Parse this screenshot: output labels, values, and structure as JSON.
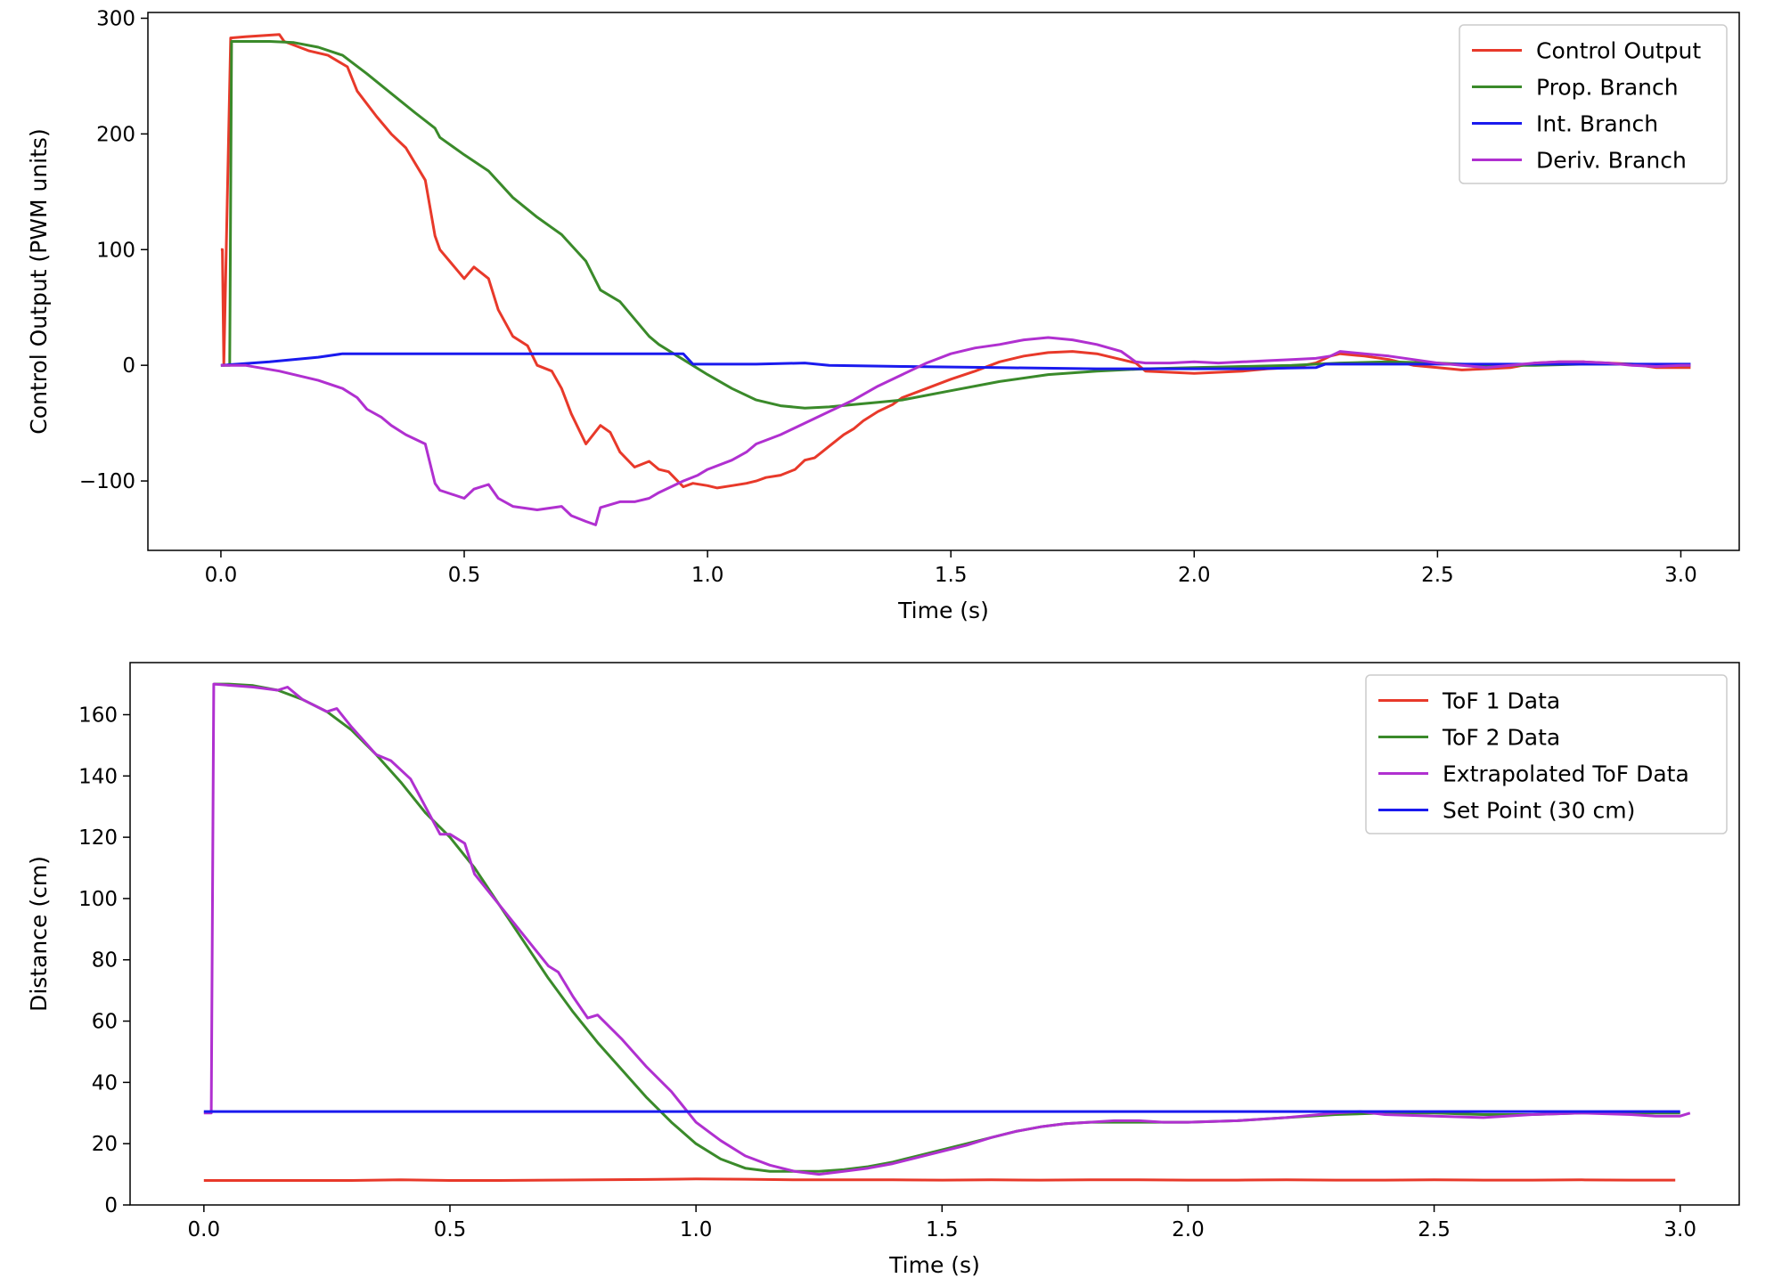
{
  "chart_data": [
    {
      "type": "line",
      "xlabel": "Time (s)",
      "ylabel": "Control Output (PWM units)",
      "xlim": [
        -0.15,
        3.12
      ],
      "ylim": [
        -160,
        305
      ],
      "xticks": [
        0.0,
        0.5,
        1.0,
        1.5,
        2.0,
        2.5,
        3.0
      ],
      "xtick_labels": [
        "0.0",
        "0.5",
        "1.0",
        "1.5",
        "2.0",
        "2.5",
        "3.0"
      ],
      "yticks": [
        -100,
        0,
        100,
        200,
        300
      ],
      "ytick_labels": [
        "−100",
        "0",
        "100",
        "200",
        "300"
      ],
      "grid": false,
      "legend_position": "top-right",
      "series": [
        {
          "name": "Control Output",
          "color": "#e8392a",
          "x": [
            0.0,
            0.003,
            0.006,
            0.02,
            0.05,
            0.12,
            0.13,
            0.18,
            0.22,
            0.26,
            0.28,
            0.32,
            0.35,
            0.38,
            0.42,
            0.44,
            0.45,
            0.5,
            0.52,
            0.55,
            0.57,
            0.6,
            0.63,
            0.65,
            0.68,
            0.7,
            0.72,
            0.75,
            0.78,
            0.8,
            0.82,
            0.85,
            0.88,
            0.9,
            0.92,
            0.95,
            0.97,
            1.0,
            1.02,
            1.05,
            1.08,
            1.1,
            1.12,
            1.15,
            1.18,
            1.2,
            1.22,
            1.25,
            1.28,
            1.3,
            1.32,
            1.35,
            1.38,
            1.4,
            1.45,
            1.5,
            1.55,
            1.6,
            1.65,
            1.7,
            1.75,
            1.8,
            1.85,
            1.88,
            1.9,
            1.95,
            2.0,
            2.05,
            2.1,
            2.15,
            2.2,
            2.25,
            2.28,
            2.3,
            2.35,
            2.4,
            2.45,
            2.5,
            2.55,
            2.6,
            2.65,
            2.7,
            2.75,
            2.8,
            2.85,
            2.9,
            2.95,
            3.0,
            3.02
          ],
          "y": [
            100,
            100,
            0,
            283,
            284,
            286,
            280,
            272,
            268,
            258,
            237,
            215,
            200,
            188,
            160,
            112,
            100,
            75,
            85,
            75,
            48,
            25,
            17,
            0,
            -5,
            -20,
            -42,
            -68,
            -52,
            -58,
            -75,
            -88,
            -83,
            -90,
            -92,
            -105,
            -102,
            -104,
            -106,
            -104,
            -102,
            -100,
            -97,
            -95,
            -90,
            -82,
            -80,
            -70,
            -60,
            -55,
            -48,
            -40,
            -34,
            -28,
            -20,
            -12,
            -5,
            3,
            8,
            11,
            12,
            10,
            5,
            2,
            -5,
            -6,
            -7,
            -6,
            -5,
            -3,
            -2,
            2,
            8,
            10,
            8,
            5,
            0,
            -2,
            -4,
            -3,
            -2,
            2,
            3,
            3,
            2,
            1,
            -2,
            -2,
            -2
          ]
        },
        {
          "name": "Prop. Branch",
          "color": "#3a8a2a",
          "x": [
            0.0,
            0.018,
            0.022,
            0.1,
            0.15,
            0.2,
            0.25,
            0.3,
            0.35,
            0.4,
            0.44,
            0.45,
            0.5,
            0.55,
            0.6,
            0.65,
            0.7,
            0.75,
            0.78,
            0.82,
            0.85,
            0.88,
            0.9,
            0.95,
            1.0,
            1.05,
            1.1,
            1.15,
            1.2,
            1.25,
            1.3,
            1.35,
            1.4,
            1.5,
            1.6,
            1.7,
            1.8,
            1.9,
            2.0,
            2.1,
            2.2,
            2.3,
            2.4,
            2.5,
            2.6,
            2.7,
            2.8,
            2.9,
            3.0,
            3.02
          ],
          "y": [
            0,
            0,
            280,
            280,
            279,
            275,
            268,
            252,
            235,
            218,
            205,
            197,
            182,
            168,
            145,
            128,
            113,
            90,
            65,
            55,
            40,
            25,
            18,
            5,
            -8,
            -20,
            -30,
            -35,
            -37,
            -36,
            -34,
            -32,
            -30,
            -22,
            -14,
            -8,
            -5,
            -3,
            -2,
            -1,
            0,
            2,
            3,
            2,
            0,
            0,
            1,
            1,
            0,
            0
          ]
        },
        {
          "name": "Int. Branch",
          "color": "#1a1aee",
          "x": [
            0.0,
            0.1,
            0.2,
            0.25,
            0.4,
            0.6,
            0.8,
            0.95,
            0.97,
            1.0,
            1.1,
            1.2,
            1.25,
            1.4,
            1.6,
            1.8,
            1.9,
            2.1,
            2.25,
            2.27,
            2.4,
            2.6,
            2.8,
            3.0,
            3.02
          ],
          "y": [
            0,
            3,
            7,
            10,
            10,
            10,
            10,
            10,
            1,
            1,
            1,
            2,
            0,
            -1,
            -2,
            -3,
            -3,
            -3,
            -2,
            1,
            1,
            1,
            1,
            1,
            1
          ]
        },
        {
          "name": "Deriv. Branch",
          "color": "#b030d0",
          "x": [
            0.0,
            0.05,
            0.12,
            0.17,
            0.2,
            0.25,
            0.28,
            0.3,
            0.33,
            0.35,
            0.38,
            0.42,
            0.44,
            0.45,
            0.5,
            0.52,
            0.55,
            0.57,
            0.6,
            0.65,
            0.7,
            0.72,
            0.75,
            0.77,
            0.78,
            0.82,
            0.85,
            0.88,
            0.9,
            0.95,
            0.98,
            1.0,
            1.05,
            1.08,
            1.1,
            1.15,
            1.2,
            1.25,
            1.3,
            1.35,
            1.4,
            1.45,
            1.5,
            1.55,
            1.6,
            1.65,
            1.7,
            1.75,
            1.8,
            1.85,
            1.88,
            1.9,
            1.95,
            2.0,
            2.05,
            2.1,
            2.15,
            2.2,
            2.25,
            2.28,
            2.3,
            2.35,
            2.4,
            2.45,
            2.5,
            2.55,
            2.6,
            2.65,
            2.7,
            2.75,
            2.8,
            2.85,
            2.9,
            2.95,
            3.0,
            3.02
          ],
          "y": [
            0,
            0,
            -5,
            -10,
            -13,
            -20,
            -28,
            -38,
            -45,
            -52,
            -60,
            -68,
            -102,
            -108,
            -115,
            -107,
            -103,
            -115,
            -122,
            -125,
            -122,
            -130,
            -135,
            -138,
            -123,
            -118,
            -118,
            -115,
            -110,
            -100,
            -95,
            -90,
            -82,
            -75,
            -68,
            -60,
            -50,
            -40,
            -30,
            -18,
            -8,
            2,
            10,
            15,
            18,
            22,
            24,
            22,
            18,
            12,
            3,
            2,
            2,
            3,
            2,
            3,
            4,
            5,
            6,
            8,
            12,
            10,
            8,
            5,
            2,
            0,
            -2,
            0,
            2,
            3,
            3,
            2,
            0,
            -1,
            0,
            0
          ]
        }
      ]
    },
    {
      "type": "line",
      "xlabel": "Time (s)",
      "ylabel": "Distance (cm)",
      "xlim": [
        -0.15,
        3.12
      ],
      "ylim": [
        0,
        177
      ],
      "xticks": [
        0.0,
        0.5,
        1.0,
        1.5,
        2.0,
        2.5,
        3.0
      ],
      "xtick_labels": [
        "0.0",
        "0.5",
        "1.0",
        "1.5",
        "2.0",
        "2.5",
        "3.0"
      ],
      "yticks": [
        0,
        20,
        40,
        60,
        80,
        100,
        120,
        140,
        160
      ],
      "ytick_labels": [
        "0",
        "20",
        "40",
        "60",
        "80",
        "100",
        "120",
        "140",
        "160"
      ],
      "grid": false,
      "legend_position": "top-right",
      "series": [
        {
          "name": "ToF 1 Data",
          "color": "#e8392a",
          "x": [
            0.0,
            0.1,
            0.2,
            0.3,
            0.4,
            0.5,
            0.6,
            0.7,
            0.8,
            0.9,
            1.0,
            1.1,
            1.2,
            1.3,
            1.4,
            1.5,
            1.6,
            1.7,
            1.8,
            1.9,
            2.0,
            2.1,
            2.2,
            2.3,
            2.4,
            2.5,
            2.6,
            2.7,
            2.8,
            2.9,
            2.99
          ],
          "y": [
            8,
            8,
            8,
            8,
            8.2,
            8,
            8,
            8.1,
            8.2,
            8.3,
            8.5,
            8.4,
            8.2,
            8.2,
            8.2,
            8.1,
            8.2,
            8.1,
            8.2,
            8.2,
            8.1,
            8.1,
            8.2,
            8.1,
            8.1,
            8.2,
            8.1,
            8.1,
            8.2,
            8.1,
            8.1
          ]
        },
        {
          "name": "ToF 2 Data",
          "color": "#3a8a2a",
          "x": [
            0.02,
            0.05,
            0.1,
            0.15,
            0.2,
            0.25,
            0.3,
            0.35,
            0.4,
            0.45,
            0.5,
            0.55,
            0.6,
            0.65,
            0.7,
            0.75,
            0.8,
            0.85,
            0.9,
            0.95,
            1.0,
            1.05,
            1.1,
            1.15,
            1.2,
            1.25,
            1.3,
            1.35,
            1.4,
            1.45,
            1.5,
            1.55,
            1.6,
            1.65,
            1.7,
            1.75,
            1.8,
            1.85,
            1.9,
            2.0,
            2.1,
            2.2,
            2.3,
            2.4,
            2.5,
            2.6,
            2.7,
            2.8,
            2.9,
            3.0
          ],
          "y": [
            170,
            170,
            169.5,
            168,
            165,
            161,
            155,
            147,
            138,
            128,
            120,
            110,
            98,
            86,
            74,
            63,
            53,
            44,
            35,
            27,
            20,
            15,
            12,
            11,
            11,
            11,
            11.5,
            12.5,
            14,
            16,
            18,
            20,
            22,
            24,
            25.5,
            26.5,
            27,
            27,
            27,
            27,
            27.5,
            28.5,
            29.5,
            30,
            30,
            29.5,
            29.5,
            30,
            30,
            30
          ]
        },
        {
          "name": "Extrapolated ToF Data",
          "color": "#b030d0",
          "x": [
            0.0,
            0.015,
            0.02,
            0.1,
            0.15,
            0.17,
            0.2,
            0.25,
            0.27,
            0.3,
            0.35,
            0.38,
            0.42,
            0.44,
            0.48,
            0.5,
            0.53,
            0.55,
            0.6,
            0.65,
            0.7,
            0.72,
            0.75,
            0.78,
            0.8,
            0.85,
            0.9,
            0.95,
            1.0,
            1.05,
            1.1,
            1.15,
            1.2,
            1.25,
            1.3,
            1.35,
            1.4,
            1.45,
            1.5,
            1.55,
            1.6,
            1.65,
            1.7,
            1.75,
            1.8,
            1.85,
            1.9,
            1.95,
            2.0,
            2.1,
            2.2,
            2.3,
            2.35,
            2.4,
            2.5,
            2.6,
            2.7,
            2.8,
            2.9,
            2.95,
            3.0,
            3.02
          ],
          "y": [
            30,
            30,
            170,
            169,
            168,
            169,
            165,
            161,
            162,
            156,
            147,
            145,
            139,
            133,
            121,
            121,
            118,
            108,
            98,
            88,
            78,
            76,
            68,
            61,
            62,
            54,
            45,
            37,
            27,
            21,
            16,
            13,
            11,
            10,
            11,
            12,
            13.5,
            15.5,
            17.5,
            19.5,
            22,
            24,
            25.5,
            26.5,
            27,
            27.5,
            27.5,
            27,
            27,
            27.5,
            28.5,
            30,
            30.5,
            29.5,
            29,
            28.5,
            29.5,
            30,
            29.5,
            29,
            29,
            30
          ]
        },
        {
          "name": "Set Point (30 cm)",
          "color": "#1a1aee",
          "x": [
            0.0,
            3.0
          ],
          "y": [
            30.5,
            30.5
          ]
        }
      ]
    }
  ]
}
